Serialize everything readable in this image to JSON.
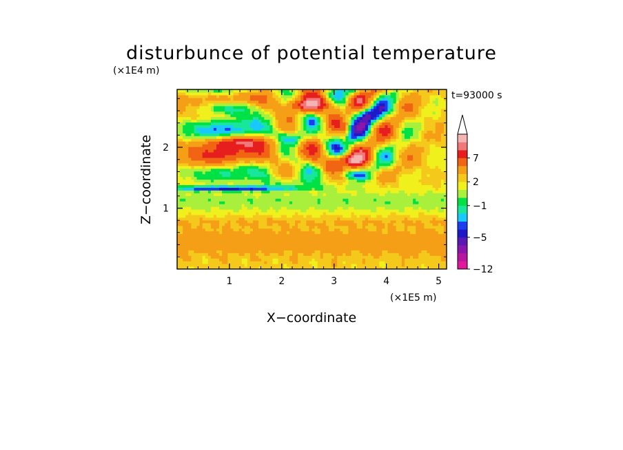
{
  "chart_data": {
    "type": "heatmap",
    "title": "disturbunce of potential temperature",
    "time_label": "t=93000 s",
    "xlabel": "X−coordinate",
    "ylabel": "Z−coordinate",
    "x_unit": "(×1E5 m)",
    "y_unit": "(×1E4 m)",
    "xlim": [
      0,
      5.15
    ],
    "ylim": [
      0,
      2.95
    ],
    "x_ticks": [
      1,
      2,
      3,
      4,
      5
    ],
    "y_ticks": [
      1,
      2
    ],
    "x_tick_labels": [
      "1",
      "2",
      "3",
      "4",
      "5"
    ],
    "y_tick_labels": [
      "1",
      "2"
    ],
    "colorbar": {
      "levels": [
        -12,
        -10,
        -8,
        -6,
        -5,
        -4,
        -3,
        -2,
        -1,
        0,
        1,
        2,
        3,
        5,
        7,
        9,
        11
      ],
      "labeled": [
        "−12",
        "−5",
        "−1",
        "2",
        "7"
      ],
      "labeled_values": [
        -12,
        -5,
        -1,
        2,
        7
      ],
      "colors": [
        "#e0189c",
        "#b8169e",
        "#8c16ab",
        "#5a18b4",
        "#1e18c8",
        "#1c3cf0",
        "#18c8ff",
        "#18e69a",
        "#00e146",
        "#a8f03c",
        "#f0f01c",
        "#f5c81c",
        "#f59f16",
        "#f06414",
        "#e61e1e",
        "#f07878",
        "#f5b4b4"
      ],
      "extend": "max"
    },
    "grid": false
  }
}
